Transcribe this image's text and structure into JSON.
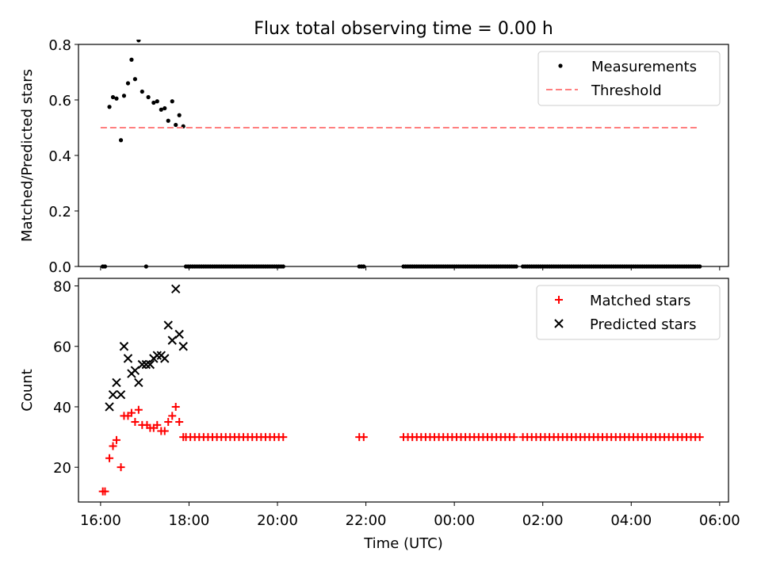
{
  "figure": {
    "title": "Flux total observing time = 0.00 h"
  },
  "chart_data": [
    {
      "type": "scatter",
      "ylabel": "Matched/Predicted stars",
      "xlabel": "",
      "xlim": [
        15.5,
        30.2
      ],
      "ylim": [
        0.0,
        0.8
      ],
      "yticks": [
        0.0,
        0.2,
        0.4,
        0.6,
        0.8
      ],
      "ytick_labels": [
        "0.0",
        "0.2",
        "0.4",
        "0.6",
        "0.8"
      ],
      "legend": {
        "placement": "top-right",
        "entries": [
          "Measurements",
          "Threshold"
        ]
      },
      "series": [
        {
          "name": "Measurements",
          "color": "#000000",
          "marker": "dot",
          "active_points": [
            [
              16.2,
              0.575
            ],
            [
              16.28,
              0.61
            ],
            [
              16.36,
              0.605
            ],
            [
              16.46,
              0.455
            ],
            [
              16.53,
              0.615
            ],
            [
              16.62,
              0.66
            ],
            [
              16.7,
              0.745
            ],
            [
              16.78,
              0.675
            ],
            [
              16.86,
              0.815
            ],
            [
              16.94,
              0.63
            ],
            [
              17.08,
              0.61
            ],
            [
              17.2,
              0.59
            ],
            [
              17.28,
              0.595
            ],
            [
              17.37,
              0.565
            ],
            [
              17.45,
              0.57
            ],
            [
              17.53,
              0.525
            ],
            [
              17.62,
              0.595
            ],
            [
              17.7,
              0.51
            ],
            [
              17.78,
              0.545
            ],
            [
              17.87,
              0.505
            ]
          ],
          "zero_segments": [
            [
              16.05,
              16.1,
              0.05
            ],
            [
              17.03,
              17.03,
              0.05
            ],
            [
              17.93,
              20.15,
              0.05
            ],
            [
              21.85,
              21.95,
              0.05
            ],
            [
              22.85,
              25.4,
              0.05
            ],
            [
              25.55,
              29.55,
              0.05
            ]
          ]
        },
        {
          "name": "Threshold",
          "color": "#ff7f7f",
          "style": "dashed",
          "x": [
            16.0,
            29.55
          ],
          "y": [
            0.5,
            0.5
          ]
        }
      ]
    },
    {
      "type": "scatter",
      "xlabel": "Time (UTC)",
      "ylabel": "Count",
      "xlim": [
        15.5,
        30.2
      ],
      "ylim": [
        8.5,
        82.5
      ],
      "xticks": [
        16,
        18,
        20,
        22,
        24,
        26,
        28,
        30
      ],
      "xtick_labels": [
        "16:00",
        "18:00",
        "20:00",
        "22:00",
        "00:00",
        "02:00",
        "04:00",
        "06:00"
      ],
      "yticks": [
        20,
        40,
        60,
        80
      ],
      "ytick_labels": [
        "20",
        "40",
        "60",
        "80"
      ],
      "legend": {
        "placement": "top-right",
        "entries": [
          "Matched stars",
          "Predicted stars"
        ]
      },
      "series": [
        {
          "name": "Matched stars",
          "color": "#ff0000",
          "marker": "plus",
          "active_points": [
            [
              16.05,
              12
            ],
            [
              16.1,
              12
            ],
            [
              16.2,
              23
            ],
            [
              16.28,
              27
            ],
            [
              16.36,
              29
            ],
            [
              16.46,
              20
            ],
            [
              16.53,
              37
            ],
            [
              16.62,
              37
            ],
            [
              16.7,
              38
            ],
            [
              16.78,
              35
            ],
            [
              16.86,
              39
            ],
            [
              16.94,
              34
            ],
            [
              17.05,
              34
            ],
            [
              17.12,
              33
            ],
            [
              17.2,
              33
            ],
            [
              17.28,
              34
            ],
            [
              17.37,
              32
            ],
            [
              17.45,
              32
            ],
            [
              17.53,
              35
            ],
            [
              17.62,
              37
            ],
            [
              17.7,
              40
            ],
            [
              17.78,
              35
            ],
            [
              17.87,
              30
            ]
          ],
          "baseline_segments": [
            [
              17.93,
              20.15,
              30,
              0.1
            ],
            [
              21.85,
              21.95,
              30,
              0.1
            ],
            [
              22.85,
              25.4,
              30,
              0.1
            ],
            [
              25.55,
              29.55,
              30,
              0.1
            ]
          ]
        },
        {
          "name": "Predicted stars",
          "color": "#000000",
          "marker": "x",
          "points": [
            [
              16.2,
              40
            ],
            [
              16.28,
              44
            ],
            [
              16.36,
              48
            ],
            [
              16.46,
              44
            ],
            [
              16.53,
              60
            ],
            [
              16.62,
              56
            ],
            [
              16.7,
              51
            ],
            [
              16.78,
              52
            ],
            [
              16.86,
              48
            ],
            [
              16.94,
              54
            ],
            [
              17.03,
              54
            ],
            [
              17.12,
              54
            ],
            [
              17.2,
              56
            ],
            [
              17.28,
              57
            ],
            [
              17.37,
              57
            ],
            [
              17.45,
              56
            ],
            [
              17.53,
              67
            ],
            [
              17.62,
              62
            ],
            [
              17.7,
              79
            ],
            [
              17.78,
              64
            ],
            [
              17.87,
              60
            ]
          ]
        }
      ]
    }
  ]
}
